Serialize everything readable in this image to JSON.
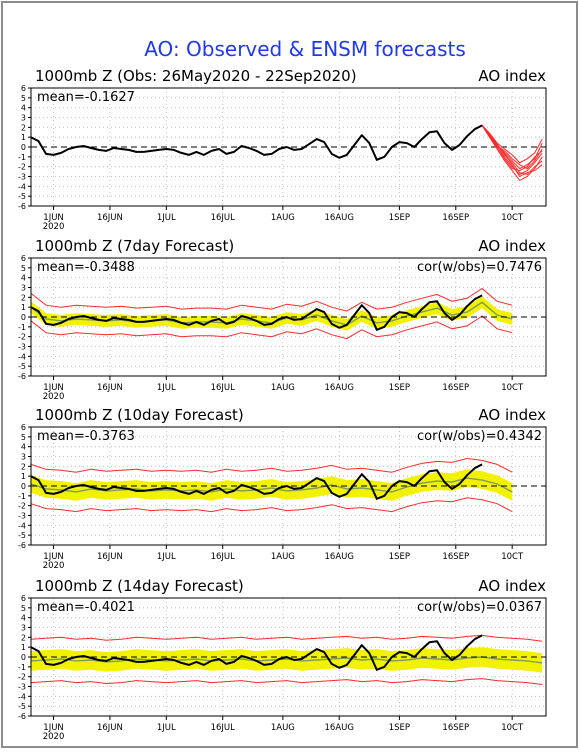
{
  "figure": {
    "title": "AO: Observed & ENSM forecasts",
    "title_color": "#1f3ae6",
    "frame_color": "#8c8c8c"
  },
  "chart_data": [
    {
      "type": "line",
      "title": "1000mb Z (Obs: 26May2020 - 22Sep2020)",
      "right_title": "AO index",
      "mean_label": "mean=-0.1627",
      "cor_label": "",
      "ylim": [
        -6,
        6
      ],
      "y_ticks": [
        6,
        5,
        4,
        3,
        2,
        1,
        0,
        -1,
        -2,
        -3,
        -4,
        -5,
        -6
      ],
      "xlim": [
        0,
        137
      ],
      "x_ticks": [
        {
          "day": 6,
          "label": "1JUN",
          "sub": "2020"
        },
        {
          "day": 21,
          "label": "16JUN",
          "sub": ""
        },
        {
          "day": 36,
          "label": "1JUL",
          "sub": ""
        },
        {
          "day": 51,
          "label": "16JUL",
          "sub": ""
        },
        {
          "day": 67,
          "label": "1AUG",
          "sub": ""
        },
        {
          "day": 82,
          "label": "16AUG",
          "sub": ""
        },
        {
          "day": 98,
          "label": "1SEP",
          "sub": ""
        },
        {
          "day": 113,
          "label": "16SEP",
          "sub": ""
        },
        {
          "day": 128,
          "label": "10CT",
          "sub": ""
        }
      ],
      "grid": true,
      "zero_line": true,
      "band": false,
      "observed": {
        "color": "#000000",
        "x": [
          0,
          2,
          4,
          6,
          8,
          10,
          12,
          14,
          16,
          18,
          20,
          22,
          24,
          26,
          28,
          30,
          32,
          34,
          36,
          38,
          40,
          42,
          44,
          46,
          48,
          50,
          52,
          54,
          56,
          58,
          60,
          62,
          64,
          66,
          68,
          70,
          72,
          74,
          76,
          78,
          80,
          82,
          84,
          86,
          88,
          90,
          92,
          94,
          96,
          98,
          100,
          102,
          104,
          106,
          108,
          110,
          112,
          114,
          116,
          118,
          120
        ],
        "y": [
          1.0,
          0.6,
          -0.7,
          -0.8,
          -0.6,
          -0.2,
          0.0,
          0.1,
          -0.1,
          -0.3,
          -0.4,
          -0.1,
          -0.2,
          -0.3,
          -0.5,
          -0.5,
          -0.4,
          -0.3,
          -0.2,
          -0.3,
          -0.6,
          -0.8,
          -0.5,
          -0.8,
          -0.4,
          -0.2,
          -0.7,
          -0.5,
          0.1,
          -0.1,
          -0.4,
          -0.8,
          -0.7,
          -0.2,
          0.0,
          -0.3,
          -0.2,
          0.3,
          0.8,
          0.5,
          -0.7,
          -1.1,
          -0.8,
          0.2,
          1.2,
          0.4,
          -1.3,
          -1.0,
          0.0,
          0.5,
          0.4,
          0.0,
          0.8,
          1.5,
          1.6,
          0.4,
          -0.3,
          0.2,
          1.1,
          1.8,
          2.2
        ]
      },
      "forecast_lines": {
        "color": "#ff2a2a",
        "x": [
          120,
          122,
          124,
          126,
          128,
          130,
          132,
          134,
          136
        ],
        "members": [
          [
            2.2,
            1.2,
            0.2,
            -0.6,
            -1.4,
            -2.2,
            -1.8,
            -1.2,
            0.4
          ],
          [
            2.2,
            1.0,
            0.0,
            -1.0,
            -2.0,
            -2.8,
            -2.4,
            -1.6,
            -0.6
          ],
          [
            2.2,
            1.4,
            0.4,
            -0.2,
            -0.8,
            -1.6,
            -1.2,
            -0.6,
            0.8
          ],
          [
            2.2,
            1.0,
            -0.2,
            -1.4,
            -2.4,
            -3.4,
            -3.0,
            -2.2,
            -1.0
          ],
          [
            2.2,
            1.2,
            0.2,
            -0.8,
            -1.6,
            -2.6,
            -2.8,
            -2.0,
            -1.4
          ],
          [
            2.2,
            1.1,
            0.1,
            -0.4,
            -1.2,
            -1.8,
            -2.2,
            -1.4,
            -0.2
          ],
          [
            2.2,
            1.3,
            0.3,
            -0.7,
            -1.8,
            -3.0,
            -2.6,
            -2.4,
            -1.8
          ],
          [
            2.2,
            1.2,
            0.0,
            -1.2,
            -2.2,
            -2.4,
            -2.0,
            -1.0,
            -0.4
          ]
        ]
      }
    },
    {
      "type": "line",
      "title": "1000mb Z (7day Forecast)",
      "right_title": "AO index",
      "mean_label": "mean=-0.3488",
      "cor_label": "cor(w/obs)=0.7476",
      "ylim": [
        -6,
        6
      ],
      "y_ticks": [
        6,
        5,
        4,
        3,
        2,
        1,
        0,
        -1,
        -2,
        -3,
        -4,
        -5,
        -6
      ],
      "xlim": [
        0,
        137
      ],
      "x_ticks": [
        {
          "day": 6,
          "label": "1JUN",
          "sub": "2020"
        },
        {
          "day": 21,
          "label": "16JUN",
          "sub": ""
        },
        {
          "day": 36,
          "label": "1JUL",
          "sub": ""
        },
        {
          "day": 51,
          "label": "16JUL",
          "sub": ""
        },
        {
          "day": 67,
          "label": "1AUG",
          "sub": ""
        },
        {
          "day": 82,
          "label": "16AUG",
          "sub": ""
        },
        {
          "day": 98,
          "label": "1SEP",
          "sub": ""
        },
        {
          "day": 113,
          "label": "16SEP",
          "sub": ""
        },
        {
          "day": 128,
          "label": "10CT",
          "sub": ""
        }
      ],
      "grid": true,
      "zero_line": true,
      "band": true,
      "observed": {
        "color": "#000000",
        "x": [
          0,
          2,
          4,
          6,
          8,
          10,
          12,
          14,
          16,
          18,
          20,
          22,
          24,
          26,
          28,
          30,
          32,
          34,
          36,
          38,
          40,
          42,
          44,
          46,
          48,
          50,
          52,
          54,
          56,
          58,
          60,
          62,
          64,
          66,
          68,
          70,
          72,
          74,
          76,
          78,
          80,
          82,
          84,
          86,
          88,
          90,
          92,
          94,
          96,
          98,
          100,
          102,
          104,
          106,
          108,
          110,
          112,
          114,
          116,
          118,
          120
        ],
        "y": [
          1.0,
          0.6,
          -0.7,
          -0.8,
          -0.6,
          -0.2,
          0.0,
          0.1,
          -0.1,
          -0.3,
          -0.4,
          -0.1,
          -0.2,
          -0.3,
          -0.5,
          -0.5,
          -0.4,
          -0.3,
          -0.2,
          -0.3,
          -0.6,
          -0.8,
          -0.5,
          -0.8,
          -0.4,
          -0.2,
          -0.7,
          -0.5,
          0.1,
          -0.1,
          -0.4,
          -0.8,
          -0.7,
          -0.2,
          0.0,
          -0.3,
          -0.2,
          0.3,
          0.8,
          0.5,
          -0.7,
          -1.1,
          -0.8,
          0.2,
          1.2,
          0.4,
          -1.3,
          -1.0,
          0.0,
          0.5,
          0.4,
          0.0,
          0.8,
          1.5,
          1.6,
          0.4,
          -0.3,
          0.2,
          1.1,
          1.8,
          2.2
        ]
      },
      "ensemble": {
        "x": [
          0,
          4,
          8,
          12,
          16,
          20,
          24,
          28,
          32,
          36,
          40,
          44,
          48,
          52,
          56,
          60,
          64,
          68,
          72,
          76,
          80,
          84,
          88,
          92,
          96,
          100,
          104,
          108,
          112,
          116,
          120,
          124,
          128
        ],
        "mean": [
          1.0,
          -0.2,
          -0.4,
          -0.2,
          -0.3,
          -0.4,
          -0.3,
          -0.5,
          -0.4,
          -0.3,
          -0.6,
          -0.5,
          -0.5,
          -0.6,
          -0.2,
          -0.4,
          -0.6,
          -0.1,
          -0.3,
          0.2,
          -0.4,
          -0.8,
          0.1,
          -0.6,
          -0.4,
          0.1,
          0.5,
          0.9,
          0.2,
          0.5,
          1.5,
          0.2,
          -0.2
        ],
        "inner_half_width": 0.6,
        "outer_half_width": 1.4,
        "band_color": "#f2f200",
        "mean_color": "#7c9f5a",
        "outer_color": "#ff2a2a"
      }
    },
    {
      "type": "line",
      "title": "1000mb Z (10day Forecast)",
      "right_title": "AO index",
      "mean_label": "mean=-0.3763",
      "cor_label": "cor(w/obs)=0.4342",
      "ylim": [
        -6,
        6
      ],
      "y_ticks": [
        6,
        5,
        4,
        3,
        2,
        1,
        0,
        -1,
        -2,
        -3,
        -4,
        -5,
        -6
      ],
      "xlim": [
        0,
        137
      ],
      "x_ticks": [
        {
          "day": 6,
          "label": "1JUN",
          "sub": "2020"
        },
        {
          "day": 21,
          "label": "16JUN",
          "sub": ""
        },
        {
          "day": 36,
          "label": "1JUL",
          "sub": ""
        },
        {
          "day": 51,
          "label": "16JUL",
          "sub": ""
        },
        {
          "day": 67,
          "label": "1AUG",
          "sub": ""
        },
        {
          "day": 82,
          "label": "16AUG",
          "sub": ""
        },
        {
          "day": 98,
          "label": "1SEP",
          "sub": ""
        },
        {
          "day": 113,
          "label": "16SEP",
          "sub": ""
        },
        {
          "day": 128,
          "label": "10CT",
          "sub": ""
        }
      ],
      "grid": true,
      "zero_line": true,
      "band": true,
      "observed": {
        "color": "#000000",
        "x": [
          0,
          2,
          4,
          6,
          8,
          10,
          12,
          14,
          16,
          18,
          20,
          22,
          24,
          26,
          28,
          30,
          32,
          34,
          36,
          38,
          40,
          42,
          44,
          46,
          48,
          50,
          52,
          54,
          56,
          58,
          60,
          62,
          64,
          66,
          68,
          70,
          72,
          74,
          76,
          78,
          80,
          82,
          84,
          86,
          88,
          90,
          92,
          94,
          96,
          98,
          100,
          102,
          104,
          106,
          108,
          110,
          112,
          114,
          116,
          118,
          120
        ],
        "y": [
          1.0,
          0.6,
          -0.7,
          -0.8,
          -0.6,
          -0.2,
          0.0,
          0.1,
          -0.1,
          -0.3,
          -0.4,
          -0.1,
          -0.2,
          -0.3,
          -0.5,
          -0.5,
          -0.4,
          -0.3,
          -0.2,
          -0.3,
          -0.6,
          -0.8,
          -0.5,
          -0.8,
          -0.4,
          -0.2,
          -0.7,
          -0.5,
          0.1,
          -0.1,
          -0.4,
          -0.8,
          -0.7,
          -0.2,
          0.0,
          -0.3,
          -0.2,
          0.3,
          0.8,
          0.5,
          -0.7,
          -1.1,
          -0.8,
          0.2,
          1.2,
          0.4,
          -1.3,
          -1.0,
          0.0,
          0.5,
          0.4,
          0.0,
          0.8,
          1.5,
          1.6,
          0.4,
          -0.3,
          0.2,
          1.1,
          1.8,
          2.2
        ]
      },
      "ensemble": {
        "x": [
          0,
          4,
          8,
          12,
          16,
          20,
          24,
          28,
          32,
          36,
          40,
          44,
          48,
          52,
          56,
          60,
          64,
          68,
          72,
          76,
          80,
          84,
          88,
          92,
          96,
          100,
          104,
          108,
          112,
          116,
          120,
          124,
          128
        ],
        "mean": [
          0.2,
          -0.3,
          -0.4,
          -0.6,
          -0.3,
          -0.5,
          -0.4,
          -0.3,
          -0.5,
          -0.4,
          -0.5,
          -0.4,
          -0.6,
          -0.3,
          -0.5,
          -0.4,
          -0.2,
          -0.5,
          -0.4,
          -0.2,
          0.1,
          -0.3,
          -0.2,
          -0.4,
          -0.6,
          -0.1,
          0.3,
          0.5,
          0.4,
          0.8,
          0.6,
          0.2,
          -0.6
        ],
        "inner_half_width": 0.9,
        "outer_half_width": 2.0,
        "band_color": "#f2f200",
        "mean_color": "#7c9f5a",
        "outer_color": "#ff2a2a"
      }
    },
    {
      "type": "line",
      "title": "1000mb Z (14day Forecast)",
      "right_title": "AO index",
      "mean_label": "mean=-0.4021",
      "cor_label": "cor(w/obs)=0.0367",
      "ylim": [
        -6,
        6
      ],
      "y_ticks": [
        6,
        5,
        4,
        3,
        2,
        1,
        0,
        -1,
        -2,
        -3,
        -4,
        -5,
        -6
      ],
      "xlim": [
        0,
        137
      ],
      "x_ticks": [
        {
          "day": 6,
          "label": "1JUN",
          "sub": "2020"
        },
        {
          "day": 21,
          "label": "16JUN",
          "sub": ""
        },
        {
          "day": 36,
          "label": "1JUL",
          "sub": ""
        },
        {
          "day": 51,
          "label": "16JUL",
          "sub": ""
        },
        {
          "day": 67,
          "label": "1AUG",
          "sub": ""
        },
        {
          "day": 82,
          "label": "16AUG",
          "sub": ""
        },
        {
          "day": 98,
          "label": "1SEP",
          "sub": ""
        },
        {
          "day": 113,
          "label": "16SEP",
          "sub": ""
        },
        {
          "day": 128,
          "label": "10CT",
          "sub": ""
        }
      ],
      "grid": true,
      "zero_line": true,
      "band": true,
      "observed": {
        "color": "#000000",
        "x": [
          0,
          2,
          4,
          6,
          8,
          10,
          12,
          14,
          16,
          18,
          20,
          22,
          24,
          26,
          28,
          30,
          32,
          34,
          36,
          38,
          40,
          42,
          44,
          46,
          48,
          50,
          52,
          54,
          56,
          58,
          60,
          62,
          64,
          66,
          68,
          70,
          72,
          74,
          76,
          78,
          80,
          82,
          84,
          86,
          88,
          90,
          92,
          94,
          96,
          98,
          100,
          102,
          104,
          106,
          108,
          110,
          112,
          114,
          116,
          118,
          120
        ],
        "y": [
          1.0,
          0.6,
          -0.7,
          -0.8,
          -0.6,
          -0.2,
          0.0,
          0.1,
          -0.1,
          -0.3,
          -0.4,
          -0.1,
          -0.2,
          -0.3,
          -0.5,
          -0.5,
          -0.4,
          -0.3,
          -0.2,
          -0.3,
          -0.6,
          -0.8,
          -0.5,
          -0.8,
          -0.4,
          -0.2,
          -0.7,
          -0.5,
          0.1,
          -0.1,
          -0.4,
          -0.8,
          -0.7,
          -0.2,
          0.0,
          -0.3,
          -0.2,
          0.3,
          0.8,
          0.5,
          -0.7,
          -1.1,
          -0.8,
          0.2,
          1.2,
          0.4,
          -1.3,
          -1.0,
          0.0,
          0.5,
          0.4,
          0.0,
          0.8,
          1.5,
          1.6,
          0.4,
          -0.3,
          0.2,
          1.1,
          1.8,
          2.2
        ]
      },
      "ensemble": {
        "x": [
          0,
          4,
          8,
          12,
          16,
          20,
          24,
          28,
          32,
          36,
          40,
          44,
          48,
          52,
          56,
          60,
          64,
          68,
          72,
          76,
          80,
          84,
          88,
          92,
          96,
          100,
          104,
          108,
          112,
          116,
          120,
          124,
          128,
          132,
          136
        ],
        "mean": [
          -0.4,
          -0.3,
          -0.2,
          -0.4,
          -0.3,
          -0.5,
          -0.4,
          -0.2,
          -0.3,
          -0.4,
          -0.3,
          -0.2,
          -0.4,
          -0.3,
          -0.2,
          -0.4,
          -0.3,
          -0.2,
          -0.4,
          -0.3,
          -0.2,
          -0.1,
          -0.3,
          -0.2,
          -0.4,
          -0.3,
          -0.1,
          -0.2,
          -0.3,
          -0.1,
          0.0,
          -0.2,
          -0.3,
          -0.4,
          -0.6
        ],
        "inner_half_width": 1.0,
        "outer_half_width": 2.2,
        "band_color": "#f2f200",
        "mean_color": "#7c9f5a",
        "outer_color": "#ff2a2a"
      }
    }
  ]
}
